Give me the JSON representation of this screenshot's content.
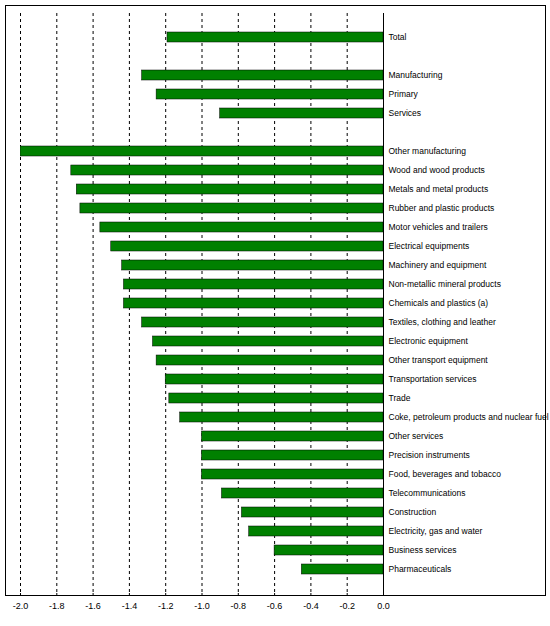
{
  "chart_data": {
    "type": "bar",
    "orientation": "horizontal",
    "categories": [
      "Total",
      null,
      "Manufacturing",
      "Primary",
      "Services",
      null,
      "Other manufacturing",
      "Wood and wood products",
      "Metals and metal products",
      "Rubber and plastic products",
      "Motor vehicles and trailers",
      "Electrical equipments",
      "Machinery and equipment",
      "Non-metallic mineral products",
      "Chemicals and plastics (a)",
      "Textiles, clothing and leather",
      "Electronic equipment",
      "Other transport equipment",
      "Transportation services",
      "Trade",
      "Coke, petroleum products and nuclear fuel",
      "Other services",
      "Precision instruments",
      "Food, beverages and tobacco",
      "Telecommunications",
      "Construction",
      "Electricity, gas and water",
      "Business services",
      "Pharmaceuticals"
    ],
    "values": [
      -1.19,
      null,
      -1.33,
      -1.25,
      -0.9,
      null,
      -2.0,
      -1.72,
      -1.69,
      -1.67,
      -1.56,
      -1.5,
      -1.44,
      -1.43,
      -1.43,
      -1.33,
      -1.27,
      -1.25,
      -1.2,
      -1.18,
      -1.12,
      -1.0,
      -1.0,
      -1.0,
      -0.89,
      -0.78,
      -0.74,
      -0.6,
      -0.45
    ],
    "color": "#008000",
    "xlim": [
      -2,
      0
    ],
    "xticks": [
      {
        "value": -2,
        "label": "-2.0"
      },
      {
        "value": -1.8,
        "label": "-1.8"
      },
      {
        "value": -1.6,
        "label": "-1.6"
      },
      {
        "value": -1.4,
        "label": "-1.4"
      },
      {
        "value": -1.2,
        "label": "-1.2"
      },
      {
        "value": -1,
        "label": "-1.0"
      },
      {
        "value": -0.8,
        "label": "-0.8"
      },
      {
        "value": -0.6,
        "label": "-0.6"
      },
      {
        "value": -0.4,
        "label": "-0.4"
      },
      {
        "value": -0.2,
        "label": "-0.2"
      },
      {
        "value": 0,
        "label": "0.0"
      }
    ],
    "grid": true
  }
}
